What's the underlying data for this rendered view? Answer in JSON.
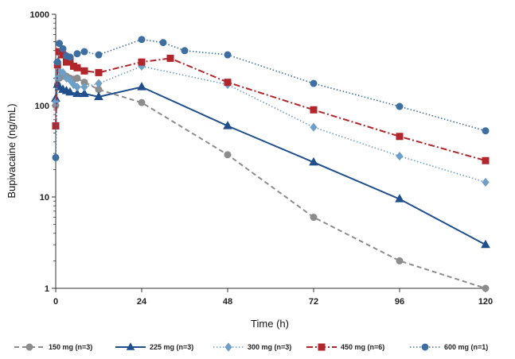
{
  "chart_data": {
    "type": "line",
    "title": "",
    "xlabel": "Time (h)",
    "ylabel": "Bupivacaine  (ng/mL)",
    "xlim": [
      0,
      120
    ],
    "ylim": [
      1,
      1000
    ],
    "yscale": "log",
    "x_ticks": [
      0,
      24,
      48,
      72,
      96,
      120
    ],
    "x_tick_labels": [
      "0",
      "24",
      "48",
      "72",
      "96",
      "120"
    ],
    "y_ticks": [
      1,
      10,
      100,
      1000
    ],
    "y_tick_labels": [
      "1",
      "10",
      "100",
      "1000"
    ],
    "grid": false,
    "legend_position": "bottom",
    "series": [
      {
        "name": "150 mg (n=3)",
        "color": "#8c8c8c",
        "line_style": "dashed",
        "marker": "circle",
        "x": [
          0,
          0.5,
          1,
          2,
          3,
          4,
          5,
          6,
          8,
          12,
          24,
          48,
          72,
          96,
          120
        ],
        "y": [
          100,
          170,
          200,
          210,
          210,
          200,
          195,
          200,
          180,
          150,
          108,
          29,
          6,
          2,
          1
        ]
      },
      {
        "name": "225 mg (n=3)",
        "color": "#1f4e8c",
        "line_style": "solid",
        "marker": "triangle",
        "x": [
          0,
          0.5,
          1,
          2,
          3,
          4,
          6,
          8,
          12,
          24,
          48,
          72,
          96,
          120
        ],
        "y": [
          120,
          170,
          160,
          150,
          145,
          140,
          135,
          135,
          125,
          160,
          60,
          24,
          9.5,
          3
        ]
      },
      {
        "name": "300 mg (n=3)",
        "color": "#6e9fc6",
        "line_style": "dotted",
        "marker": "diamond",
        "x": [
          0,
          0.5,
          1,
          2,
          3,
          4,
          5,
          6,
          8,
          12,
          24,
          48,
          72,
          96,
          120
        ],
        "y": [
          110,
          200,
          240,
          230,
          200,
          190,
          170,
          160,
          160,
          175,
          270,
          170,
          58,
          28,
          14.5
        ]
      },
      {
        "name": "450 mg (n=6)",
        "color": "#b0262b",
        "line_style": "dash-dot",
        "marker": "square",
        "x": [
          0,
          0.5,
          1,
          2,
          3,
          4,
          5,
          6,
          8,
          12,
          24,
          32,
          48,
          72,
          96,
          120
        ],
        "y": [
          60,
          280,
          390,
          360,
          300,
          320,
          270,
          260,
          240,
          230,
          300,
          330,
          180,
          90,
          46,
          25
        ]
      },
      {
        "name": "600 mg (n=1)",
        "color": "#3e6fa0",
        "line_style": "dotted",
        "marker": "circle",
        "x": [
          0,
          0.5,
          1,
          2,
          3,
          4,
          6,
          8,
          12,
          24,
          30,
          36,
          48,
          72,
          96,
          120
        ],
        "y": [
          27,
          300,
          480,
          420,
          350,
          340,
          370,
          390,
          360,
          530,
          490,
          400,
          360,
          175,
          98,
          53
        ]
      }
    ]
  }
}
